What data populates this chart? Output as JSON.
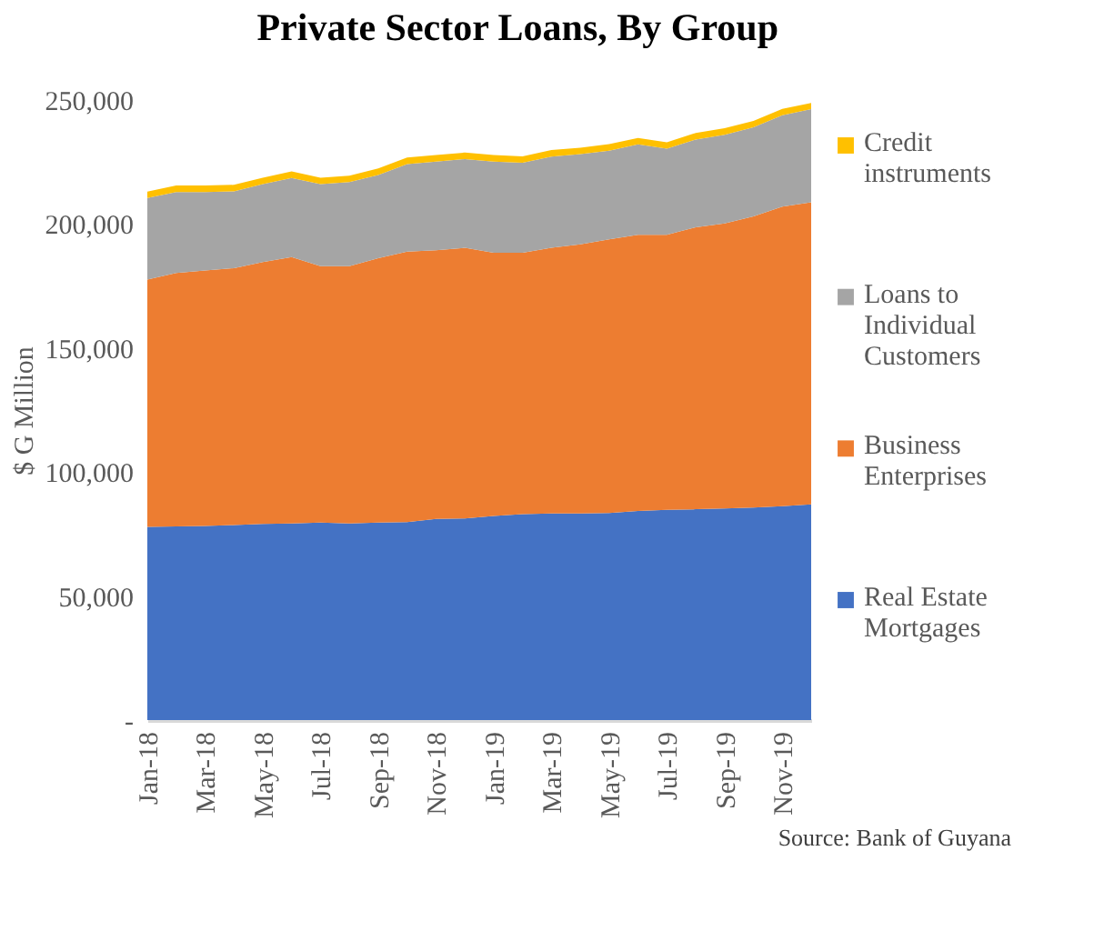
{
  "chart_data": {
    "type": "area",
    "title": "Private Sector Loans, By Group",
    "ylabel": "$ G Million",
    "stacked": true,
    "legend": "right",
    "grid": false,
    "categories": [
      "Jan-18",
      null,
      "Mar-18",
      null,
      "May-18",
      null,
      "Jul-18",
      null,
      "Sep-18",
      null,
      "Nov-18",
      null,
      "Jan-19",
      null,
      "Mar-19",
      null,
      "May-19",
      null,
      "Jul-19",
      null,
      "Sep-19",
      null,
      "Nov-19",
      null
    ],
    "ylim": [
      0,
      250000
    ],
    "yticks": [
      {
        "value": 0,
        "label": "-"
      },
      {
        "value": 50000,
        "label": "50,000"
      },
      {
        "value": 100000,
        "label": "100,000"
      },
      {
        "value": 150000,
        "label": "150,000"
      },
      {
        "value": 200000,
        "label": "200,000"
      },
      {
        "value": 250000,
        "label": "250,000"
      }
    ],
    "series": [
      {
        "name": "Real Estate Mortgages",
        "color": "#4472c4",
        "values": [
          77900,
          78100,
          78300,
          78600,
          79100,
          79300,
          79600,
          79300,
          79600,
          79800,
          81100,
          81300,
          82300,
          83000,
          83300,
          83300,
          83500,
          84300,
          84800,
          85000,
          85300,
          85700,
          86200,
          87000
        ]
      },
      {
        "name": "Business Enterprises",
        "color": "#ed7d31",
        "values": [
          99700,
          102200,
          103000,
          103600,
          105600,
          107400,
          103400,
          103700,
          106600,
          109100,
          108300,
          109100,
          106100,
          105400,
          107100,
          108500,
          110300,
          111400,
          110900,
          113700,
          114900,
          117400,
          120800,
          121800
        ]
      },
      {
        "name": "Loans to Individual Customers",
        "color": "#a5a5a5",
        "values": [
          32900,
          32600,
          31600,
          31000,
          31400,
          31900,
          33100,
          33900,
          33600,
          35300,
          35800,
          35800,
          36800,
          36300,
          36800,
          36400,
          35800,
          36400,
          34700,
          35400,
          35800,
          35900,
          36900,
          37500
        ]
      },
      {
        "name": "Credit instruments",
        "color": "#ffc000",
        "values": [
          2600,
          2600,
          2600,
          2600,
          2600,
          2600,
          2600,
          2600,
          2600,
          2600,
          2600,
          2600,
          2600,
          2600,
          2600,
          2600,
          2600,
          2600,
          2600,
          2600,
          2600,
          2600,
          2500,
          2500
        ]
      }
    ],
    "annotations": [
      "Source: Bank of Guyana"
    ]
  }
}
